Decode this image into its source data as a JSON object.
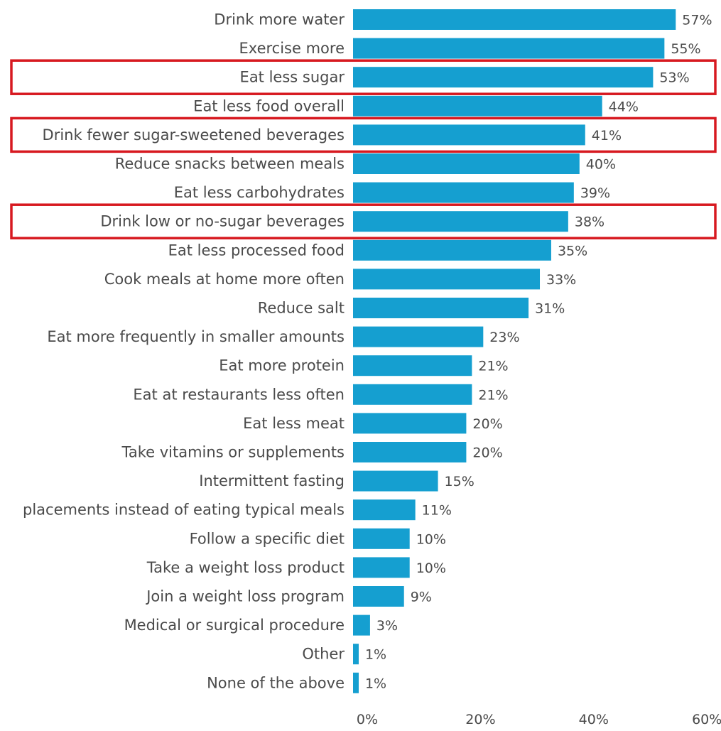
{
  "chart_data": {
    "type": "bar",
    "orientation": "horizontal",
    "categories": [
      "Drink more water",
      "Exercise more",
      "Eat less sugar",
      "Eat less food overall",
      "Drink fewer sugar-sweetened beverages",
      "Reduce snacks between meals",
      "Eat less carbohydrates",
      "Drink low or no-sugar beverages",
      "Eat less processed food",
      "Cook meals at home more often",
      "Reduce salt",
      "Eat more frequently in smaller amounts",
      "Eat more protein",
      "Eat at restaurants less often",
      "Eat less meat",
      "Take vitamins or supplements",
      "Intermittent fasting",
      "placements instead of eating typical meals",
      "Follow a specific diet",
      "Take a weight loss product",
      "Join a weight loss program",
      "Medical or surgical procedure",
      "Other",
      "None of the above"
    ],
    "values": [
      57,
      55,
      53,
      44,
      41,
      40,
      39,
      38,
      35,
      33,
      31,
      23,
      21,
      21,
      20,
      20,
      15,
      11,
      10,
      10,
      9,
      3,
      1,
      1
    ],
    "value_labels": [
      "57%",
      "55%",
      "53%",
      "44%",
      "41%",
      "40%",
      "39%",
      "38%",
      "35%",
      "33%",
      "31%",
      "23%",
      "21%",
      "21%",
      "20%",
      "20%",
      "15%",
      "11%",
      "10%",
      "10%",
      "9%",
      "3%",
      "1%",
      "1%"
    ],
    "xlim": [
      0,
      60
    ],
    "x_ticks": [
      0,
      20,
      40,
      60
    ],
    "x_tick_labels": [
      "0%",
      "20%",
      "40%",
      "60%"
    ],
    "grid": false,
    "highlighted_categories": [
      "Eat less sugar",
      "Drink fewer sugar-sweetened beverages",
      "Drink low or no-sugar beverages"
    ],
    "colors": {
      "bar": "#159fd0",
      "highlight_box": "#d71920",
      "text": "#4a4a4a"
    }
  }
}
